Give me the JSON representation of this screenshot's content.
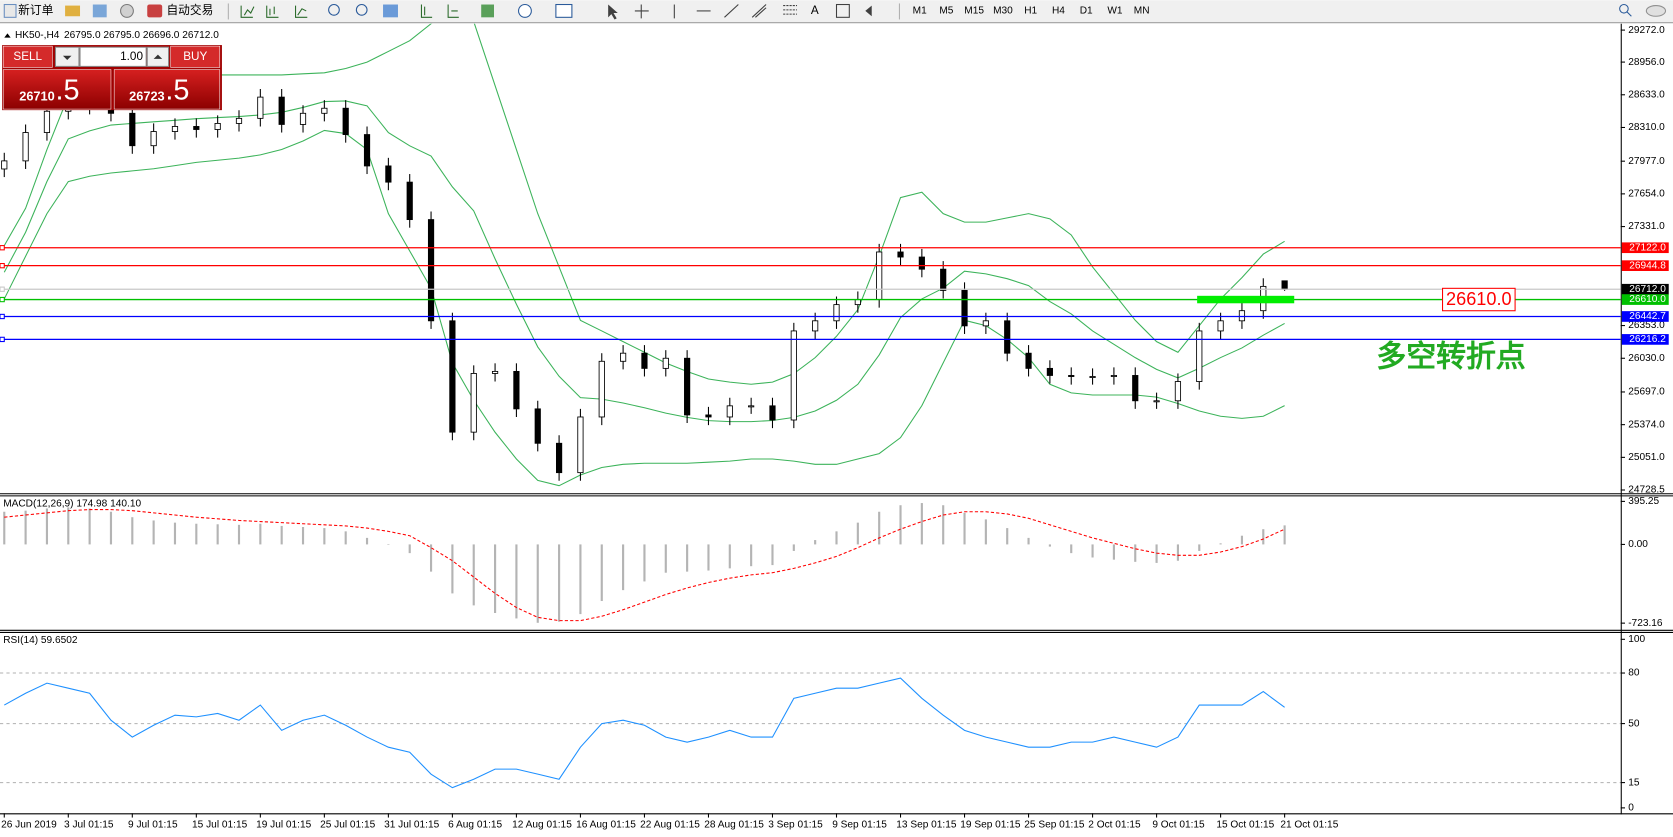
{
  "toolbar": {
    "new_order": "新订单",
    "auto_trade": "自动交易",
    "timeframes": [
      "M1",
      "M5",
      "M15",
      "M30",
      "H1",
      "H4",
      "D1",
      "W1",
      "MN"
    ]
  },
  "trade_panel": {
    "sell": "SELL",
    "buy": "BUY",
    "lots": "1.00",
    "bid_main": "26710",
    "bid_tail": ".5",
    "ask_main": "26723",
    "ask_tail": ".5"
  },
  "chart_data": [
    {
      "type": "candlestick",
      "title": "HK50-,H4",
      "subtitle": "26795.0 26795.0 26696.0 26712.0",
      "categories": [
        "26 Jun 2019",
        null,
        null,
        "3 Jul 01:15",
        null,
        null,
        "9 Jul 01:15",
        null,
        null,
        "15 Jul 01:15",
        null,
        null,
        "19 Jul 01:15",
        null,
        null,
        "25 Jul 01:15",
        null,
        null,
        "31 Jul 01:15",
        null,
        null,
        "6 Aug 01:15",
        null,
        null,
        "12 Aug 01:15",
        null,
        null,
        "16 Aug 01:15",
        null,
        null,
        "22 Aug 01:15",
        null,
        null,
        "28 Aug 01:15",
        null,
        null,
        "3 Sep 01:15",
        null,
        null,
        "9 Sep 01:15",
        null,
        null,
        "13 Sep 01:15",
        null,
        null,
        "19 Sep 01:15",
        null,
        null,
        "25 Sep 01:15",
        null,
        null,
        "2 Oct 01:15",
        null,
        null,
        "9 Oct 01:15",
        null,
        null,
        "15 Oct 01:15",
        null,
        null,
        "21 Oct 01:15"
      ],
      "open": [
        27900,
        27980,
        28260,
        28470,
        28600,
        28520,
        28450,
        28130,
        28270,
        28320,
        28290,
        28350,
        28400,
        28610,
        28340,
        28450,
        28500,
        28240,
        27930,
        27770,
        27400,
        26400,
        25300,
        25880,
        25900,
        25530,
        25190,
        24900,
        25450,
        26000,
        26080,
        25930,
        26030,
        25470,
        25450,
        25560,
        25560,
        25420,
        26300,
        26400,
        26560,
        26610,
        27080,
        27030,
        26910,
        26700,
        26350,
        26400,
        26080,
        25930,
        25860,
        25850,
        25850,
        25860,
        25610,
        25610,
        25800,
        26300,
        26400,
        26500,
        26795
      ],
      "high": [
        28060,
        28340,
        28550,
        28680,
        28680,
        28600,
        28530,
        28350,
        28400,
        28400,
        28430,
        28480,
        28690,
        28690,
        28530,
        28580,
        28580,
        28320,
        28010,
        27850,
        27480,
        26480,
        25960,
        25980,
        25980,
        25610,
        25270,
        25530,
        26080,
        26160,
        26160,
        26110,
        26110,
        25550,
        25640,
        25640,
        25640,
        26380,
        26480,
        26640,
        26690,
        27160,
        27160,
        27110,
        26990,
        26780,
        26480,
        26480,
        26160,
        26010,
        25940,
        25930,
        25940,
        25940,
        25690,
        25880,
        26380,
        26480,
        26580,
        26820,
        26795
      ],
      "low": [
        27820,
        27900,
        28180,
        28390,
        28440,
        28370,
        28050,
        28050,
        28190,
        28210,
        28210,
        28270,
        28320,
        28260,
        28260,
        28370,
        28160,
        27850,
        27690,
        27320,
        26320,
        25220,
        25220,
        25800,
        25450,
        25110,
        24820,
        24820,
        25370,
        25920,
        25850,
        25850,
        25390,
        25370,
        25370,
        25480,
        25340,
        25340,
        26220,
        26320,
        26480,
        26530,
        26950,
        26830,
        26620,
        26270,
        26270,
        26000,
        25850,
        25780,
        25770,
        25770,
        25770,
        25530,
        25530,
        25530,
        25720,
        26220,
        26320,
        26420,
        26696
      ],
      "close": [
        27980,
        28260,
        28470,
        28600,
        28520,
        28450,
        28130,
        28270,
        28320,
        28290,
        28350,
        28400,
        28610,
        28340,
        28450,
        28500,
        28240,
        27930,
        27770,
        27400,
        26400,
        25300,
        25880,
        25900,
        25530,
        25190,
        24900,
        25450,
        26000,
        26080,
        25930,
        26030,
        25470,
        25450,
        25560,
        25560,
        25420,
        26300,
        26400,
        26560,
        26610,
        27080,
        27030,
        26910,
        26700,
        26350,
        26400,
        26080,
        25930,
        25860,
        25850,
        25850,
        25860,
        25610,
        25610,
        25800,
        26300,
        26400,
        26500,
        26740,
        26712
      ],
      "up_color": "#ffffff",
      "down_color": "#000000",
      "overlays": [
        {
          "color": "#3cb35a",
          "values": [
            27143,
            27512,
            28092,
            28619,
            28724,
            28808,
            28819,
            28829,
            28829,
            28829,
            28829,
            28829,
            28829,
            28829,
            28840,
            28850,
            28893,
            28956,
            29061,
            29167,
            29335,
            29462,
            29356,
            28724,
            28092,
            27459,
            26932,
            26405,
            26300,
            26194,
            26089,
            25983,
            25899,
            25825,
            25794,
            25773,
            25794,
            25878,
            26036,
            26247,
            26510,
            27038,
            27617,
            27670,
            27459,
            27375,
            27375,
            27417,
            27459,
            27407,
            27248,
            26932,
            26669,
            26405,
            26194,
            26089,
            26352,
            26616,
            26827,
            27059,
            27185
          ]
        },
        {
          "color": "#3cb35a",
          "values": [
            26880,
            27275,
            27776,
            28197,
            28276,
            28334,
            28350,
            28366,
            28381,
            28397,
            28408,
            28418,
            28434,
            28460,
            28508,
            28566,
            28572,
            28524,
            28260,
            28129,
            28028,
            27723,
            27486,
            27012,
            26564,
            26142,
            25852,
            25641,
            25626,
            25588,
            25541,
            25488,
            25446,
            25414,
            25404,
            25404,
            25415,
            25446,
            25509,
            25615,
            25773,
            26063,
            26432,
            26616,
            26722,
            26890,
            26864,
            26816,
            26748,
            26590,
            26468,
            26300,
            26168,
            26036,
            25920,
            25836,
            25931,
            26037,
            26132,
            26258,
            26374
          ]
        },
        {
          "color": "#3cb35a",
          "values": [
            26616,
            27038,
            27459,
            27775,
            27828,
            27860,
            27881,
            27902,
            27933,
            27965,
            27986,
            28007,
            28039,
            28092,
            28176,
            28281,
            28250,
            28092,
            27459,
            27090,
            26721,
            25984,
            25615,
            25299,
            25035,
            24824,
            24771,
            24877,
            24951,
            24982,
            24993,
            24993,
            24993,
            25003,
            25014,
            25035,
            25035,
            25014,
            24982,
            24982,
            25035,
            25088,
            25246,
            25562,
            25984,
            26405,
            26352,
            26215,
            26036,
            25773,
            25688,
            25667,
            25667,
            25667,
            25646,
            25583,
            25509,
            25457,
            25436,
            25457,
            25562
          ]
        }
      ],
      "hlines": [
        {
          "value": 27122.0,
          "label": "27122.0",
          "color": "#ff0000"
        },
        {
          "value": 26944.8,
          "label": "26944.8",
          "color": "#ff0000"
        },
        {
          "value": 26712.0,
          "label": "26712.0",
          "color": "#c8c8c8",
          "label_background": "#000000"
        },
        {
          "value": 26610.0,
          "label": "26610.0",
          "color": "#00c000"
        },
        {
          "value": 26442.7,
          "label": "26442.7",
          "color": "#0000ff"
        },
        {
          "value": 26216.2,
          "label": "26216.2",
          "color": "#0000ff"
        }
      ],
      "annotations": [
        {
          "text": "26610.0",
          "color": "#ff0000"
        },
        {
          "text": "多空转折点",
          "color": "#22aa22"
        }
      ],
      "highlight_color": "#00ee00",
      "ylim": [
        24697,
        29335
      ],
      "yticks": [
        {
          "value": 29272,
          "label": "29272.0"
        },
        {
          "value": 28956,
          "label": "28956.0"
        },
        {
          "value": 28633,
          "label": "28633.0"
        },
        {
          "value": 28310,
          "label": "28310.0"
        },
        {
          "value": 27977,
          "label": "27977.0"
        },
        {
          "value": 27654,
          "label": "27654.0"
        },
        {
          "value": 27331,
          "label": "27331.0"
        },
        {
          "value": 26353,
          "label": "26353.0"
        },
        {
          "value": 26030,
          "label": "26030.0"
        },
        {
          "value": 25697,
          "label": "25697.0"
        },
        {
          "value": 25374,
          "label": "25374.0"
        },
        {
          "value": 25051,
          "label": "25051.0"
        },
        {
          "value": 24728.5,
          "label": "24728.5"
        }
      ]
    },
    {
      "type": "macd",
      "title": "MACD(12,26,9) 174.98 140.10",
      "histogram": {
        "color": "#b4b4b4",
        "values": [
          300,
          310,
          330,
          340,
          330,
          300,
          250,
          220,
          200,
          190,
          185,
          180,
          190,
          170,
          160,
          150,
          120,
          60,
          0,
          -80,
          -250,
          -450,
          -560,
          -630,
          -680,
          -720,
          -710,
          -640,
          -520,
          -420,
          -340,
          -260,
          -250,
          -240,
          -220,
          -200,
          -190,
          -60,
          40,
          120,
          200,
          300,
          360,
          380,
          360,
          290,
          230,
          150,
          60,
          -20,
          -80,
          -120,
          -140,
          -160,
          -170,
          -150,
          -60,
          10,
          80,
          140,
          174.98
        ]
      },
      "signal": {
        "color": "#ff0000",
        "values": [
          250,
          270,
          290,
          310,
          320,
          320,
          310,
          290,
          270,
          250,
          235,
          220,
          210,
          200,
          190,
          180,
          170,
          150,
          120,
          80,
          -30,
          -150,
          -300,
          -450,
          -580,
          -670,
          -700,
          -700,
          -660,
          -600,
          -530,
          -460,
          -400,
          -350,
          -310,
          -280,
          -260,
          -220,
          -170,
          -110,
          -30,
          60,
          140,
          210,
          270,
          300,
          300,
          280,
          240,
          180,
          120,
          60,
          10,
          -40,
          -80,
          -100,
          -100,
          -70,
          -20,
          50,
          140.1
        ]
      },
      "ylim": [
        -784,
        451
      ],
      "yticks": [
        {
          "value": 395.25,
          "label": "395.25"
        },
        {
          "value": 0,
          "label": "0.00"
        },
        {
          "value": -723.16,
          "label": "-723.16"
        }
      ]
    },
    {
      "type": "line",
      "title": "RSI(14) 59.6502",
      "color": "#1e90ff",
      "values": [
        61,
        68,
        74,
        71,
        68,
        52,
        42,
        49,
        55,
        54,
        56,
        52,
        61,
        46,
        52,
        55,
        49,
        42,
        36,
        33,
        20,
        12,
        17,
        23,
        23,
        20,
        17,
        36,
        50,
        52,
        49,
        42,
        39,
        42,
        46,
        42,
        42,
        65,
        68,
        71,
        71,
        74,
        77,
        65,
        55,
        46,
        42,
        39,
        36,
        36,
        39,
        39,
        42,
        39,
        36,
        42,
        61,
        61,
        61,
        69,
        59.6502
      ],
      "ylim": [
        -3.2,
        104.4
      ],
      "yticks": [
        100,
        80,
        50,
        15,
        0
      ]
    }
  ]
}
